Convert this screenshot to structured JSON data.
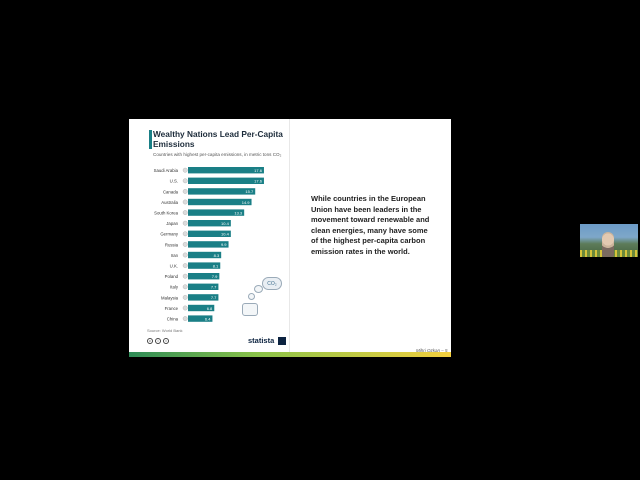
{
  "slide": {
    "text": "While countries in the European Union have been leaders in the movement toward renewable and clean energies, many have some of the highest per-capita carbon emission rates in the world.",
    "footer": "Mihri Ozkan – 5"
  },
  "infographic": {
    "title": "Wealthy Nations Lead Per-Capita Emissions",
    "subtitle": "Countries with highest per-capita emissions, in metric tons CO₂",
    "source": "Source: World Bank",
    "brand": "statista",
    "co2_label": "CO₂",
    "bar_color": "#1a7f86"
  },
  "chart_data": {
    "type": "bar",
    "orientation": "horizontal",
    "title": "Wealthy Nations Lead Per-Capita Emissions",
    "subtitle": "Countries with highest per-capita emissions, in metric tons CO₂",
    "categories": [
      "Saudi Arabia",
      "U.S.",
      "Canada",
      "Australia",
      "South Korea",
      "Japan",
      "Germany",
      "Russia",
      "Iran",
      "U.K.",
      "Poland",
      "Italy",
      "Malaysia",
      "France",
      "China"
    ],
    "values": [
      17.6,
      17.6,
      15.7,
      14.9,
      13.3,
      10.4,
      10.4,
      9.9,
      8.3,
      8.1,
      7.9,
      7.7,
      7.7,
      6.8,
      6.4
    ],
    "value_labels": [
      "17.6",
      "17.6",
      "15.7",
      "14.9",
      "13.3",
      "10.4",
      "10.4",
      "9.9",
      "8.3",
      "8.1",
      "7.9",
      "7.7",
      "7.7",
      "6.8",
      "6.4"
    ],
    "xlim": [
      0,
      20
    ],
    "grid": false
  }
}
